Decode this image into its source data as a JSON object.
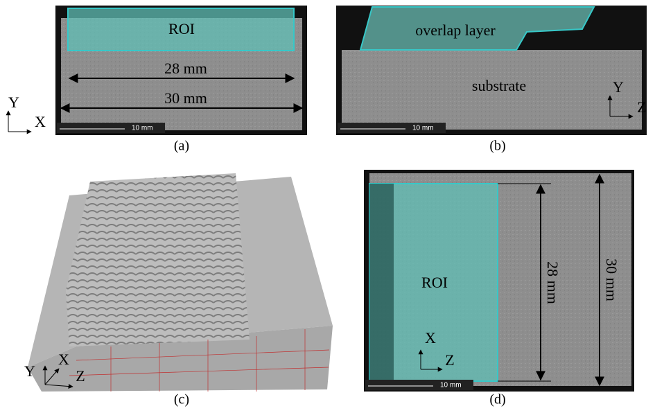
{
  "panels": [
    {
      "label": "(a)",
      "roi": "ROI",
      "inner_width": "28 mm",
      "outer_width": "30 mm",
      "scale_bar": "10 mm",
      "axes": [
        "Y",
        "X"
      ]
    },
    {
      "label": "(b)",
      "layer": "overlap layer",
      "base": "substrate",
      "scale_bar": "10 mm",
      "axes": [
        "Y",
        "Z"
      ]
    },
    {
      "label": "(c)",
      "axes": [
        "Y",
        "X",
        "Z"
      ]
    },
    {
      "label": "(d)",
      "roi": "ROI",
      "inner_width": "28 mm",
      "outer_width": "30 mm",
      "scale_bar": "10 mm",
      "axes": [
        "X",
        "Z"
      ]
    }
  ]
}
